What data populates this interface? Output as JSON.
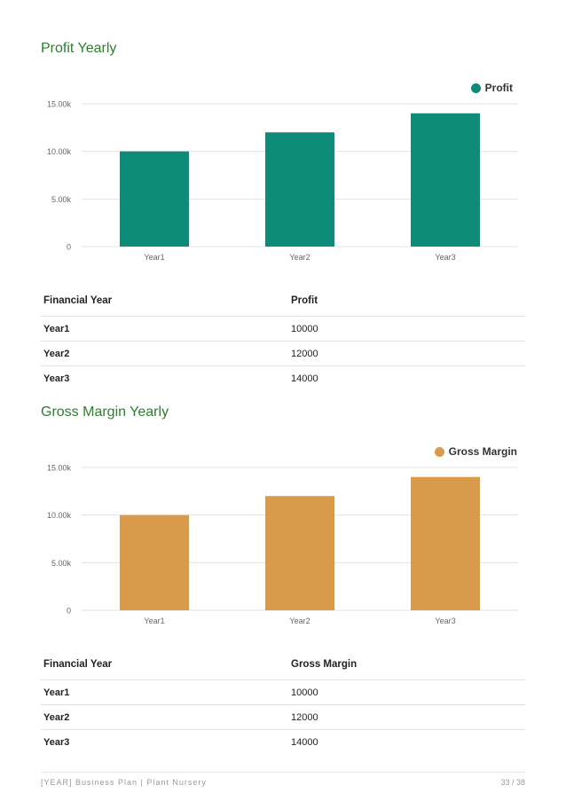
{
  "sections": [
    {
      "title": "Profit Yearly",
      "legend_label": "Profit",
      "table_headers": [
        "Financial Year",
        "Profit"
      ],
      "rows": [
        [
          "Year1",
          "10000"
        ],
        [
          "Year2",
          "12000"
        ],
        [
          "Year3",
          "14000"
        ]
      ]
    },
    {
      "title": "Gross Margin Yearly",
      "legend_label": "Gross Margin",
      "table_headers": [
        "Financial Year",
        "Gross Margin"
      ],
      "rows": [
        [
          "Year1",
          "10000"
        ],
        [
          "Year2",
          "12000"
        ],
        [
          "Year3",
          "14000"
        ]
      ]
    }
  ],
  "chart_data": [
    {
      "type": "bar",
      "categories": [
        "Year1",
        "Year2",
        "Year3"
      ],
      "series": [
        {
          "name": "Profit",
          "values": [
            10000,
            12000,
            14000
          ],
          "color": "#0e8a78"
        }
      ],
      "ylim": [
        0,
        15000
      ],
      "yticks": [
        "0",
        "5.00k",
        "10.00k",
        "15.00k"
      ],
      "grid": true,
      "legend": "top-right"
    },
    {
      "type": "bar",
      "categories": [
        "Year1",
        "Year2",
        "Year3"
      ],
      "series": [
        {
          "name": "Gross Margin",
          "values": [
            10000,
            12000,
            14000
          ],
          "color": "#d99a4a"
        }
      ],
      "ylim": [
        0,
        15000
      ],
      "yticks": [
        "0",
        "5.00k",
        "10.00k",
        "15.00k"
      ],
      "grid": true,
      "legend": "top-right"
    }
  ],
  "footer": {
    "left": "[YEAR] Business Plan | Plant Nursery",
    "right": "33 / 38"
  }
}
